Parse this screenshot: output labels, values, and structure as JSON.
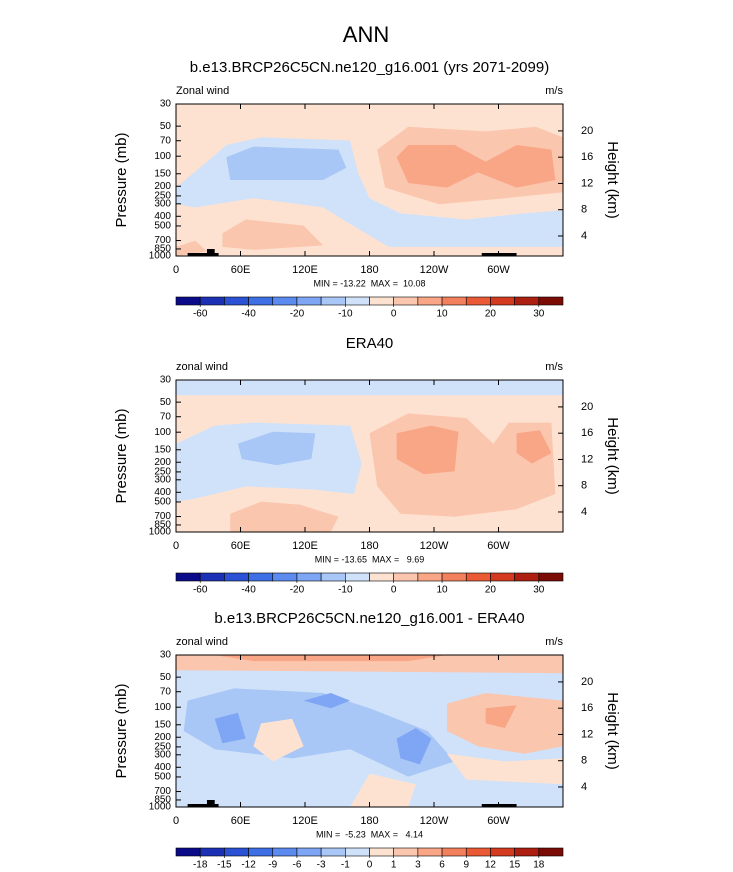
{
  "title": "ANN",
  "chart_data": [
    {
      "type": "contour",
      "title": "b.e13.BRCP26C5CN.ne120_g16.001 (yrs 2071-2099)",
      "left_label": "Zonal wind",
      "right_label": "m/s",
      "ylabel": "Pressure (mb)",
      "y2label": "Height (km)",
      "stats": "MIN = -13.22  MAX =  10.08",
      "xlim": [
        0,
        360
      ],
      "xticks": [
        0,
        {
          "value": 60,
          "label": "60E"
        },
        {
          "value": 120,
          "label": "120E"
        },
        180,
        {
          "value": 240,
          "label": "120W"
        },
        {
          "value": 300,
          "label": "60W"
        }
      ],
      "ylim": [
        1000,
        30
      ],
      "log_y": true,
      "yticks": [
        30,
        50,
        70,
        100,
        150,
        200,
        250,
        300,
        400,
        500,
        700,
        850,
        1000
      ],
      "y2lim": [
        0.95,
        24.1
      ],
      "y2ticks": [
        4,
        8,
        12,
        16,
        20
      ],
      "colorbar": {
        "ticks": [
          -60,
          -40,
          -20,
          -10,
          0,
          10,
          20,
          30
        ],
        "colors": [
          "#0b0b8a",
          "#1c30b6",
          "#2b52d4",
          "#3f6fe4",
          "#5c8bef",
          "#7fa6f4",
          "#a8c6f6",
          "#cfe2fa",
          "#fde2d2",
          "#fbc6ae",
          "#f8a686",
          "#f3805d",
          "#ea5a37",
          "#d33a1f",
          "#ad1f10",
          "#7a0c05"
        ]
      }
    },
    {
      "type": "contour",
      "title": "ERA40",
      "left_label": "zonal wind",
      "right_label": "m/s",
      "ylabel": "Pressure (mb)",
      "y2label": "Height (km)",
      "stats": "MIN = -13.65  MAX =   9.69",
      "xlim": [
        0,
        360
      ],
      "xticks": [
        0,
        {
          "value": 60,
          "label": "60E"
        },
        {
          "value": 120,
          "label": "120E"
        },
        180,
        {
          "value": 240,
          "label": "120W"
        },
        {
          "value": 300,
          "label": "60W"
        }
      ],
      "ylim": [
        1000,
        30
      ],
      "log_y": true,
      "yticks": [
        30,
        50,
        70,
        100,
        150,
        200,
        250,
        300,
        400,
        500,
        700,
        850,
        1000
      ],
      "y2lim": [
        0.95,
        24.1
      ],
      "y2ticks": [
        4,
        8,
        12,
        16,
        20
      ],
      "colorbar": {
        "ticks": [
          -60,
          -40,
          -20,
          -10,
          0,
          10,
          20,
          30
        ],
        "colors": [
          "#0b0b8a",
          "#1c30b6",
          "#2b52d4",
          "#3f6fe4",
          "#5c8bef",
          "#7fa6f4",
          "#a8c6f6",
          "#cfe2fa",
          "#fde2d2",
          "#fbc6ae",
          "#f8a686",
          "#f3805d",
          "#ea5a37",
          "#d33a1f",
          "#ad1f10",
          "#7a0c05"
        ]
      }
    },
    {
      "type": "contour",
      "title": "b.e13.BRCP26C5CN.ne120_g16.001 - ERA40",
      "left_label": "zonal wind",
      "right_label": "m/s",
      "ylabel": "Pressure (mb)",
      "y2label": "Height (km)",
      "stats": "MIN =  -5.23  MAX =   4.14",
      "xlim": [
        0,
        360
      ],
      "xticks": [
        0,
        {
          "value": 60,
          "label": "60E"
        },
        {
          "value": 120,
          "label": "120E"
        },
        180,
        {
          "value": 240,
          "label": "120W"
        },
        {
          "value": 300,
          "label": "60W"
        }
      ],
      "ylim": [
        1000,
        30
      ],
      "log_y": true,
      "yticks": [
        30,
        50,
        70,
        100,
        150,
        200,
        250,
        300,
        400,
        500,
        700,
        850,
        1000
      ],
      "y2lim": [
        0.95,
        24.1
      ],
      "y2ticks": [
        4,
        8,
        12,
        16,
        20
      ],
      "colorbar": {
        "ticks": [
          -18,
          -15,
          -12,
          -9,
          -6,
          -3,
          -1,
          0,
          1,
          3,
          6,
          9,
          12,
          15,
          18
        ],
        "colors": [
          "#0b0b8a",
          "#1c30b6",
          "#2b52d4",
          "#3f6fe4",
          "#5c8bef",
          "#7fa6f4",
          "#a8c6f6",
          "#cfe2fa",
          "#fde2d2",
          "#fbc6ae",
          "#f8a686",
          "#f3805d",
          "#ea5a37",
          "#d33a1f",
          "#ad1f10",
          "#7a0c05"
        ]
      }
    }
  ]
}
